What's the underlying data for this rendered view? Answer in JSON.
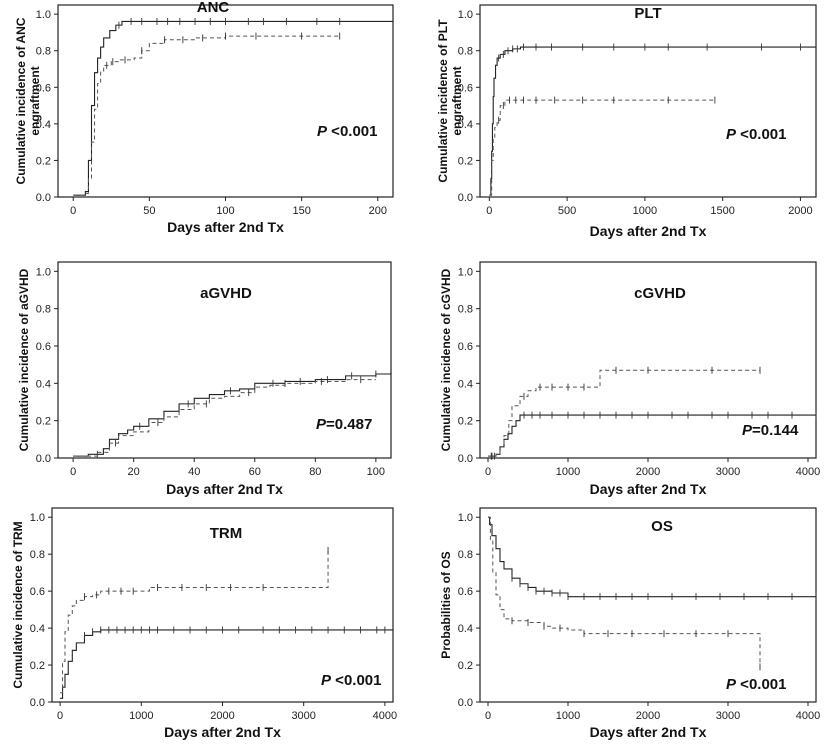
{
  "chart_data": [
    {
      "type": "line",
      "title": "ANC",
      "xlabel": "Days after 2nd Tx",
      "ylabel_lines": [
        "Cumulative incidence of ANC",
        "engraftment"
      ],
      "xlim": [
        -10,
        210
      ],
      "ylim": [
        0,
        1.05
      ],
      "xticks": [
        0,
        50,
        100,
        150,
        200
      ],
      "yticks": [
        0.0,
        0.2,
        0.4,
        0.6,
        0.8,
        1.0
      ],
      "pvalue": {
        "p": "P",
        "rest": " <0.001"
      },
      "series": [
        {
          "style": "solid",
          "x": [
            0,
            8,
            10,
            12,
            14,
            16,
            18,
            20,
            24,
            28,
            32,
            40,
            60,
            90,
            120,
            150,
            180,
            210
          ],
          "y": [
            0.01,
            0.03,
            0.2,
            0.5,
            0.68,
            0.76,
            0.82,
            0.87,
            0.91,
            0.94,
            0.96,
            0.96,
            0.96,
            0.96,
            0.96,
            0.96,
            0.96,
            0.96
          ],
          "censor": [
            30,
            38,
            45,
            55,
            62,
            70,
            80,
            90,
            100,
            115,
            125,
            140,
            160,
            175
          ]
        },
        {
          "style": "dashed",
          "x": [
            0,
            8,
            10,
            12,
            14,
            16,
            18,
            20,
            25,
            30,
            40,
            45,
            50,
            60,
            80,
            100,
            175
          ],
          "y": [
            0.01,
            0.02,
            0.1,
            0.3,
            0.48,
            0.62,
            0.69,
            0.72,
            0.74,
            0.75,
            0.76,
            0.8,
            0.84,
            0.86,
            0.87,
            0.88,
            0.88
          ],
          "censor": [
            22,
            26,
            34,
            45,
            60,
            72,
            85,
            100,
            120,
            150,
            175
          ]
        }
      ]
    },
    {
      "type": "line",
      "title": "PLT",
      "xlabel": "Days after 2nd Tx",
      "ylabel_lines": [
        "Cumulative incidence of PLT",
        "engraftment"
      ],
      "xlim": [
        -60,
        2100
      ],
      "ylim": [
        0,
        1.05
      ],
      "xticks": [
        0,
        500,
        1000,
        1500,
        2000
      ],
      "yticks": [
        0.0,
        0.2,
        0.4,
        0.6,
        0.8,
        1.0
      ],
      "pvalue": {
        "p": "P",
        "rest": " <0.001"
      },
      "series": [
        {
          "style": "solid",
          "x": [
            0,
            10,
            15,
            20,
            25,
            30,
            40,
            50,
            70,
            100,
            150,
            200,
            2100
          ],
          "y": [
            0.01,
            0.1,
            0.25,
            0.4,
            0.55,
            0.65,
            0.72,
            0.76,
            0.78,
            0.8,
            0.81,
            0.82,
            0.82
          ],
          "censor": [
            60,
            90,
            120,
            150,
            180,
            220,
            300,
            400,
            600,
            800,
            1000,
            1150,
            1400,
            1750,
            2000
          ]
        },
        {
          "style": "dashed",
          "x": [
            0,
            15,
            25,
            35,
            50,
            70,
            100,
            1450
          ],
          "y": [
            0.01,
            0.2,
            0.32,
            0.38,
            0.42,
            0.5,
            0.53,
            0.53
          ],
          "censor": [
            60,
            90,
            130,
            170,
            220,
            300,
            420,
            600,
            800,
            1150,
            1450
          ]
        }
      ]
    },
    {
      "type": "line",
      "title": "aGVHD",
      "xlabel": "Days after 2nd Tx",
      "ylabel_lines": [
        "Cumulative incidence of aGVHD"
      ],
      "xlim": [
        -5,
        105
      ],
      "ylim": [
        0,
        1.05
      ],
      "xticks": [
        0,
        20,
        40,
        60,
        80,
        100
      ],
      "yticks": [
        0.0,
        0.2,
        0.4,
        0.6,
        0.8,
        1.0
      ],
      "pvalue": {
        "p": "P",
        "rest": "=0.487"
      },
      "series": [
        {
          "style": "solid",
          "x": [
            0,
            5,
            10,
            12,
            15,
            18,
            20,
            25,
            30,
            35,
            40,
            45,
            50,
            55,
            60,
            65,
            70,
            80,
            90,
            100,
            105
          ],
          "y": [
            0.01,
            0.02,
            0.05,
            0.1,
            0.13,
            0.15,
            0.17,
            0.21,
            0.25,
            0.29,
            0.32,
            0.34,
            0.36,
            0.37,
            0.4,
            0.4,
            0.41,
            0.42,
            0.44,
            0.45,
            0.46
          ],
          "censor": [
            8,
            22,
            38,
            52,
            66,
            75,
            84,
            92,
            100
          ]
        },
        {
          "style": "dashed",
          "x": [
            0,
            8,
            12,
            15,
            20,
            25,
            30,
            35,
            40,
            45,
            50,
            55,
            60,
            65,
            70,
            80,
            90,
            100
          ],
          "y": [
            0.01,
            0.03,
            0.08,
            0.12,
            0.14,
            0.19,
            0.22,
            0.26,
            0.29,
            0.32,
            0.33,
            0.35,
            0.38,
            0.39,
            0.4,
            0.41,
            0.42,
            0.42
          ],
          "censor": [
            14,
            28,
            44,
            58,
            70,
            82,
            95
          ]
        }
      ]
    },
    {
      "type": "line",
      "title": "cGVHD",
      "xlabel": "Days after 2nd Tx",
      "ylabel_lines": [
        "Cumulative incidence of cGVHD"
      ],
      "xlim": [
        -100,
        4100
      ],
      "ylim": [
        0,
        1.05
      ],
      "xticks": [
        0,
        1000,
        2000,
        3000,
        4000
      ],
      "yticks": [
        0.0,
        0.2,
        0.4,
        0.6,
        0.8,
        1.0
      ],
      "pvalue": {
        "p": "P",
        "rest": "=0.144"
      },
      "series": [
        {
          "style": "solid",
          "x": [
            0,
            100,
            150,
            200,
            250,
            300,
            350,
            400,
            4100
          ],
          "y": [
            0.01,
            0.02,
            0.06,
            0.1,
            0.13,
            0.17,
            0.2,
            0.23,
            0.23
          ],
          "censor": [
            40,
            80,
            450,
            550,
            650,
            800,
            1000,
            1200,
            1400,
            1600,
            1800,
            2000,
            2300,
            2500,
            2800,
            3000,
            3300,
            3500,
            3800,
            4100
          ]
        },
        {
          "style": "dashed",
          "x": [
            0,
            100,
            150,
            200,
            260,
            300,
            400,
            500,
            600,
            700,
            1400,
            3400
          ],
          "y": [
            0.01,
            0.02,
            0.06,
            0.12,
            0.2,
            0.28,
            0.33,
            0.36,
            0.38,
            0.38,
            0.47,
            0.47
          ],
          "censor": [
            50,
            450,
            650,
            800,
            1000,
            1200,
            1600,
            2000,
            2800,
            3400
          ]
        }
      ]
    },
    {
      "type": "line",
      "title": "TRM",
      "xlabel": "Days after 2nd Tx",
      "ylabel_lines": [
        "Cumulative incidence of TRM"
      ],
      "xlim": [
        -100,
        4100
      ],
      "ylim": [
        0,
        1.05
      ],
      "xticks": [
        0,
        1000,
        2000,
        3000,
        4000
      ],
      "yticks": [
        0.0,
        0.2,
        0.4,
        0.6,
        0.8,
        1.0
      ],
      "pvalue": {
        "p": "P",
        "rest": " <0.001"
      },
      "series": [
        {
          "style": "solid",
          "x": [
            0,
            30,
            60,
            100,
            150,
            200,
            300,
            400,
            500,
            4100
          ],
          "y": [
            0.02,
            0.08,
            0.15,
            0.22,
            0.28,
            0.32,
            0.36,
            0.38,
            0.39,
            0.39
          ],
          "censor": [
            300,
            400,
            500,
            600,
            700,
            800,
            900,
            1000,
            1100,
            1200,
            1400,
            1600,
            1800,
            2000,
            2200,
            2500,
            2700,
            2900,
            3100,
            3300,
            3500,
            3700,
            3900,
            4000
          ]
        },
        {
          "style": "dashed",
          "x": [
            0,
            30,
            60,
            100,
            150,
            200,
            300,
            400,
            500,
            1000,
            1100,
            3250,
            3300
          ],
          "y": [
            0.05,
            0.22,
            0.38,
            0.47,
            0.52,
            0.55,
            0.57,
            0.58,
            0.6,
            0.6,
            0.62,
            0.62,
            0.82
          ],
          "censor": [
            300,
            450,
            600,
            750,
            900,
            1200,
            1500,
            1800,
            2100,
            2500,
            3300
          ]
        }
      ]
    },
    {
      "type": "line",
      "title": "OS",
      "xlabel": "Days after 2nd Tx",
      "ylabel_lines": [
        "Probabilities of OS"
      ],
      "xlim": [
        -100,
        4100
      ],
      "ylim": [
        0,
        1.05
      ],
      "xticks": [
        0,
        1000,
        2000,
        3000,
        4000
      ],
      "yticks": [
        0.0,
        0.2,
        0.4,
        0.6,
        0.8,
        1.0
      ],
      "pvalue": {
        "p": "P",
        "rest": " <0.001"
      },
      "series": [
        {
          "style": "solid",
          "x": [
            0,
            20,
            50,
            100,
            150,
            200,
            300,
            400,
            500,
            600,
            800,
            1000,
            4100
          ],
          "y": [
            1.0,
            0.96,
            0.9,
            0.83,
            0.76,
            0.72,
            0.67,
            0.64,
            0.62,
            0.6,
            0.59,
            0.57,
            0.57
          ],
          "censor": [
            300,
            400,
            500,
            600,
            700,
            800,
            900,
            1000,
            1200,
            1400,
            1600,
            1800,
            2000,
            2300,
            2600,
            2900,
            3200,
            3500,
            3800,
            4100
          ]
        },
        {
          "style": "dashed",
          "x": [
            0,
            30,
            60,
            100,
            150,
            200,
            300,
            500,
            700,
            800,
            1000,
            1200,
            2000,
            3350,
            3400
          ],
          "y": [
            1.0,
            0.88,
            0.7,
            0.58,
            0.5,
            0.45,
            0.44,
            0.43,
            0.41,
            0.4,
            0.39,
            0.37,
            0.37,
            0.37,
            0.19
          ],
          "censor": [
            300,
            500,
            700,
            900,
            1200,
            1500,
            1800,
            2200,
            2600,
            3000,
            3400
          ]
        }
      ]
    }
  ]
}
